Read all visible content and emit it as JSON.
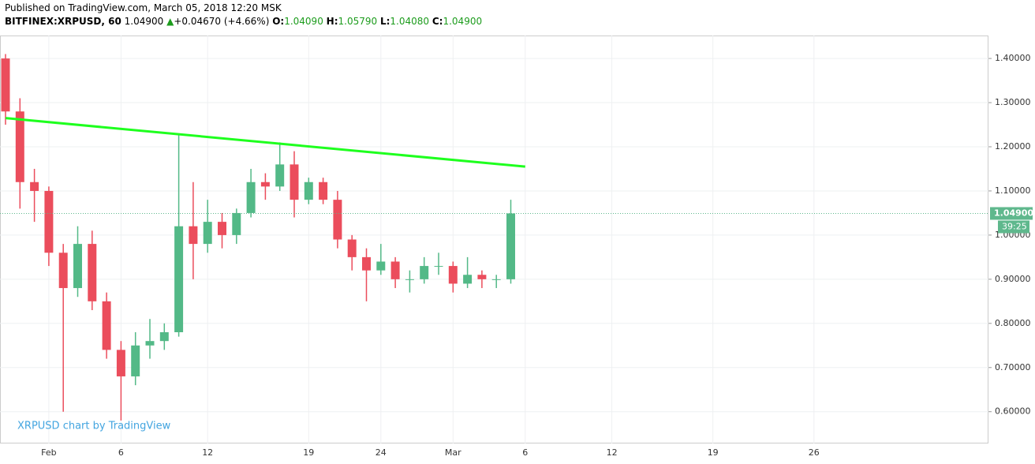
{
  "header": {
    "published": "Published on TradingView.com, March 05, 2018 12:20 MSK",
    "symbol": "BITFINEX:XRPUSD, 60",
    "price": "1.04900",
    "arrow": "▲",
    "change": "+0.04670 (+4.66%)",
    "o_label": "O:",
    "o": "1.04090",
    "h_label": "H:",
    "h": "1.05790",
    "l_label": "L:",
    "l": "1.04080",
    "c_label": "C:",
    "c": "1.04900"
  },
  "chart_data": {
    "type": "candlestick",
    "watermark": "XRPUSD chart by TradingView",
    "categories": [
      null,
      null,
      null,
      "Feb",
      null,
      null,
      null,
      null,
      "6",
      null,
      null,
      null,
      null,
      null,
      "12",
      null,
      null,
      null,
      null,
      null,
      null,
      "19",
      null,
      null,
      null,
      null,
      "24",
      null,
      null,
      null,
      null,
      "Mar",
      null,
      null,
      null,
      null,
      "6",
      null,
      null,
      null,
      null,
      null,
      "12",
      null,
      null,
      null,
      null,
      null,
      null,
      "19",
      null,
      null,
      null,
      null,
      null,
      null,
      "26"
    ],
    "open": [
      1.4,
      1.28,
      1.12,
      1.1,
      0.96,
      0.88,
      0.98,
      0.85,
      0.74,
      0.68,
      0.75,
      0.76,
      0.78,
      1.02,
      0.98,
      1.03,
      1.0,
      1.05,
      1.12,
      1.11,
      1.16,
      1.08,
      1.12,
      1.08,
      0.99,
      0.95,
      0.92,
      0.94,
      0.9,
      0.9,
      0.93,
      0.93,
      0.89,
      0.91,
      0.9,
      0.9,
      null,
      null,
      null,
      null,
      null,
      null,
      null,
      null,
      null,
      null,
      null,
      null,
      null,
      null,
      null,
      null,
      null,
      null,
      null,
      null,
      null
    ],
    "high": [
      1.41,
      1.31,
      1.15,
      1.11,
      0.98,
      1.02,
      1.01,
      0.87,
      0.76,
      0.78,
      0.81,
      0.8,
      1.23,
      1.12,
      1.08,
      1.05,
      1.06,
      1.15,
      1.14,
      1.21,
      1.19,
      1.13,
      1.13,
      1.1,
      1.0,
      0.97,
      0.98,
      0.95,
      0.92,
      0.95,
      0.96,
      0.94,
      0.95,
      0.92,
      0.91,
      1.08,
      null,
      null,
      null,
      null,
      null,
      null,
      null,
      null,
      null,
      null,
      null,
      null,
      null,
      null,
      null,
      null,
      null,
      null,
      null,
      null,
      null
    ],
    "low": [
      1.25,
      1.06,
      1.03,
      0.93,
      0.6,
      0.86,
      0.83,
      0.72,
      0.58,
      0.66,
      0.72,
      0.74,
      0.77,
      0.9,
      0.96,
      0.97,
      0.98,
      1.04,
      1.08,
      1.1,
      1.04,
      1.07,
      1.07,
      0.97,
      0.92,
      0.85,
      0.91,
      0.88,
      0.87,
      0.89,
      0.91,
      0.87,
      0.88,
      0.88,
      0.88,
      0.89,
      null,
      null,
      null,
      null,
      null,
      null,
      null,
      null,
      null,
      null,
      null,
      null,
      null,
      null,
      null,
      null,
      null,
      null,
      null,
      null,
      null
    ],
    "close": [
      1.28,
      1.12,
      1.1,
      0.96,
      0.88,
      0.98,
      0.85,
      0.74,
      0.68,
      0.75,
      0.76,
      0.78,
      1.02,
      0.98,
      1.03,
      1.0,
      1.05,
      1.12,
      1.11,
      1.16,
      1.08,
      1.12,
      1.08,
      0.99,
      0.95,
      0.92,
      0.94,
      0.9,
      0.9,
      0.93,
      0.93,
      0.89,
      0.91,
      0.9,
      0.9,
      1.049,
      null,
      null,
      null,
      null,
      null,
      null,
      null,
      null,
      null,
      null,
      null,
      null,
      null,
      null,
      null,
      null,
      null,
      null,
      null,
      null,
      null
    ],
    "up_color": "#53b987",
    "down_color": "#eb4d5c",
    "ylim": [
      0.528,
      1.452
    ],
    "yticks": [
      {
        "value": 0.6,
        "label": "0.60000"
      },
      {
        "value": 0.7,
        "label": "0.70000"
      },
      {
        "value": 0.8,
        "label": "0.80000"
      },
      {
        "value": 0.9,
        "label": "0.90000"
      },
      {
        "value": 1.0,
        "label": "1.00000"
      },
      {
        "value": 1.1,
        "label": "1.10000"
      },
      {
        "value": 1.2,
        "label": "1.20000"
      },
      {
        "value": 1.3,
        "label": "1.30000"
      },
      {
        "value": 1.4,
        "label": "1.40000"
      }
    ],
    "grid": true,
    "last_price": {
      "value": 1.049,
      "label": "1.04900",
      "countdown": "39:25",
      "color": "#5fb88d"
    },
    "trendline": {
      "color": "#1eff1e",
      "start": [
        0,
        1.265
      ],
      "end": [
        36,
        1.155
      ]
    }
  }
}
